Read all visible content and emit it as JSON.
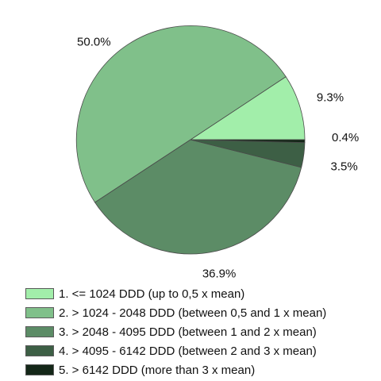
{
  "chart_data": {
    "type": "pie",
    "start_angle_deg": 0,
    "direction": "counterclockwise",
    "slices": [
      {
        "label": "1. <= 1024 DDD (up to 0,5 x mean)",
        "value": 9.3,
        "value_label": "9.3%",
        "color": "#a2eeaa"
      },
      {
        "label": "2. > 1024 - 2048 DDD (between 0,5 and 1 x mean)",
        "value": 50.0,
        "value_label": "50.0%",
        "color": "#80c08a"
      },
      {
        "label": "3. > 2048 - 4095 DDD (between 1 and 2 x mean)",
        "value": 36.9,
        "value_label": "36.9%",
        "color": "#5c8c66"
      },
      {
        "label": "4. > 4095 - 6142 DDD (between 2 and 3 x mean)",
        "value": 3.5,
        "value_label": "3.5%",
        "color": "#3d5f45"
      },
      {
        "label": "5. > 6142 DDD (more than 3 x mean)",
        "value": 0.4,
        "value_label": "0.4%",
        "color": "#142718"
      }
    ],
    "legend": "bottom"
  }
}
